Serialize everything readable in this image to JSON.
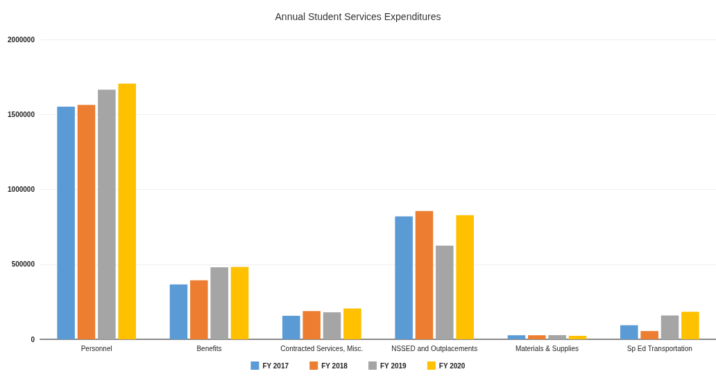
{
  "chart_data": {
    "type": "bar",
    "title": "Annual Student Services Expenditures",
    "categories": [
      "Personnel",
      "Benefits",
      "Contracted Services, Misc.",
      "NSSED and Outplacements",
      "Materials & Supplies",
      "Sp Ed Transportation"
    ],
    "series": [
      {
        "name": "FY 2017",
        "color": "#5b9bd5",
        "values": [
          1552000,
          366000,
          157000,
          820000,
          27000,
          94000
        ]
      },
      {
        "name": "FY 2018",
        "color": "#ed7d31",
        "values": [
          1563000,
          394000,
          188000,
          856000,
          27000,
          55000
        ]
      },
      {
        "name": "FY 2019",
        "color": "#a5a5a5",
        "values": [
          1665000,
          480000,
          180000,
          625000,
          28000,
          159000
        ]
      },
      {
        "name": "FY 2020",
        "color": "#ffc000",
        "values": [
          1706000,
          483000,
          206000,
          828000,
          23000,
          184000
        ]
      }
    ],
    "ylim": [
      0,
      2000000
    ],
    "yticks": [
      0,
      500000,
      1000000,
      1500000,
      2000000
    ],
    "grid": "y",
    "legend": "bottom"
  }
}
